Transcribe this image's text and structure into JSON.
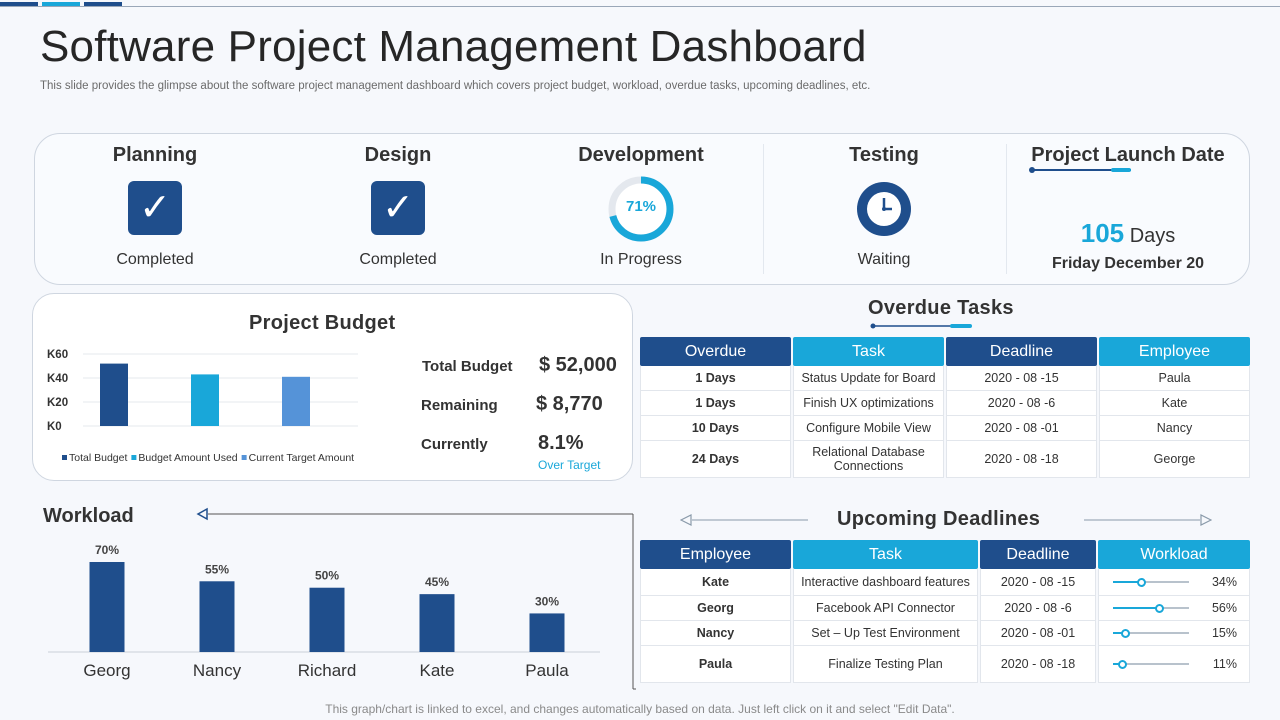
{
  "page": {
    "title": "Software Project Management Dashboard",
    "subtitle": "This slide provides the glimpse about the software project management dashboard which covers project budget, workload, overdue tasks, upcoming deadlines, etc.",
    "footer": "This graph/chart is linked to excel, and changes automatically based on data. Just left click on it and select \"Edit Data\"."
  },
  "stages": {
    "planning": {
      "title": "Planning",
      "status": "Completed"
    },
    "design": {
      "title": "Design",
      "status": "Completed"
    },
    "development": {
      "title": "Development",
      "status": "In Progress",
      "progress_label": "71%",
      "progress": 0.71
    },
    "testing": {
      "title": "Testing",
      "status": "Waiting"
    },
    "launch": {
      "title": "Project Launch Date",
      "days_number": "105",
      "days_unit": "Days",
      "date": "Friday December 20"
    }
  },
  "budget": {
    "title": "Project Budget",
    "total_label": "Total Budget",
    "total_value": "$ 52,000",
    "remaining_label": "Remaining",
    "remaining_value": "$ 8,770",
    "currently_label": "Currently",
    "currently_value": "8.1%",
    "over_target": "Over Target"
  },
  "workload_title": "Workload",
  "overdue": {
    "title": "Overdue Tasks",
    "headers": [
      "Overdue",
      "Task",
      "Deadline",
      "Employee"
    ],
    "rows": [
      [
        "1 Days",
        "Status Update for Board",
        "2020 - 08 -15",
        "Paula"
      ],
      [
        "1 Days",
        "Finish UX optimizations",
        "2020 - 08 -6",
        "Kate"
      ],
      [
        "10 Days",
        "Configure Mobile View",
        "2020 - 08 -01",
        "Nancy"
      ],
      [
        "24 Days",
        "Relational Database Connections",
        "2020 - 08 -18",
        "George"
      ]
    ]
  },
  "deadlines": {
    "title": "Upcoming Deadlines",
    "headers": [
      "Employee",
      "Task",
      "Deadline",
      "Workload"
    ],
    "rows": [
      {
        "employee": "Kate",
        "task": "Interactive dashboard features",
        "deadline": "2020 - 08 -15",
        "workload": "34%",
        "level": 0.34
      },
      {
        "employee": "Georg",
        "task": "Facebook API Connector",
        "deadline": "2020 - 08 -6",
        "workload": "56%",
        "level": 0.56
      },
      {
        "employee": "Nancy",
        "task": "Set – Up Test Environment",
        "deadline": "2020 - 08 -01",
        "workload": "15%",
        "level": 0.15
      },
      {
        "employee": "Paula",
        "task": "Finalize Testing Plan",
        "deadline": "2020 - 08 -18",
        "workload": "11%",
        "level": 0.11
      }
    ]
  },
  "colors": {
    "dark_blue": "#1f4e8c",
    "cyan": "#19a7d9",
    "light_blue": "#5593d8"
  },
  "chart_data": [
    {
      "type": "bar",
      "categories": [
        "Total Budget",
        "Budget Amount Used",
        "Current Target Amount"
      ],
      "values": [
        52,
        43,
        41
      ],
      "y_tick_labels": [
        "K0",
        "K20",
        "K40",
        "K60"
      ],
      "ylim": [
        0,
        60
      ],
      "legend": [
        "Total Budget",
        "Budget Amount Used",
        "Current Target Amount"
      ],
      "legend_position": "bottom",
      "colors": [
        "#1f4e8c",
        "#19a7d9",
        "#5593d8"
      ]
    },
    {
      "type": "bar",
      "categories": [
        "Georg",
        "Nancy",
        "Richard",
        "Kate",
        "Paula"
      ],
      "values": [
        70,
        55,
        50,
        45,
        30
      ],
      "labels": [
        "70%",
        "55%",
        "50%",
        "45%",
        "30%"
      ],
      "ylim": [
        0,
        70
      ]
    }
  ]
}
